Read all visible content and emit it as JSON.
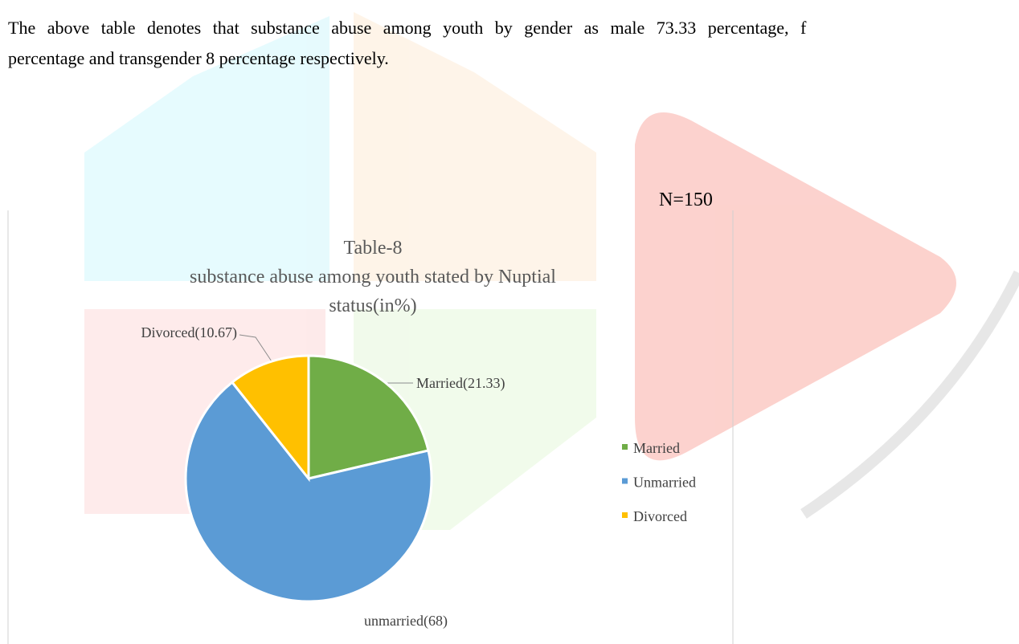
{
  "paragraph": [
    "The above table denotes that substance abuse among youth by gender as male 73.33 percentage, f",
    "percentage and transgender 8 percentage respectively."
  ],
  "chart_data": {
    "type": "pie",
    "title": "Table-8",
    "subtitle": [
      "substance abuse among youth stated by Nuptial",
      "status(in%)"
    ],
    "annotation": "N=150",
    "categories": [
      "Married",
      "Unmarried",
      "Divorced"
    ],
    "values": [
      21.33,
      68,
      10.67
    ],
    "value_labels": [
      "Married(21.33)",
      "unmarried(68)",
      "Divorced(10.67)"
    ],
    "colors": [
      "#70ad47",
      "#5b9bd5",
      "#ffc000"
    ],
    "legend": "right"
  }
}
